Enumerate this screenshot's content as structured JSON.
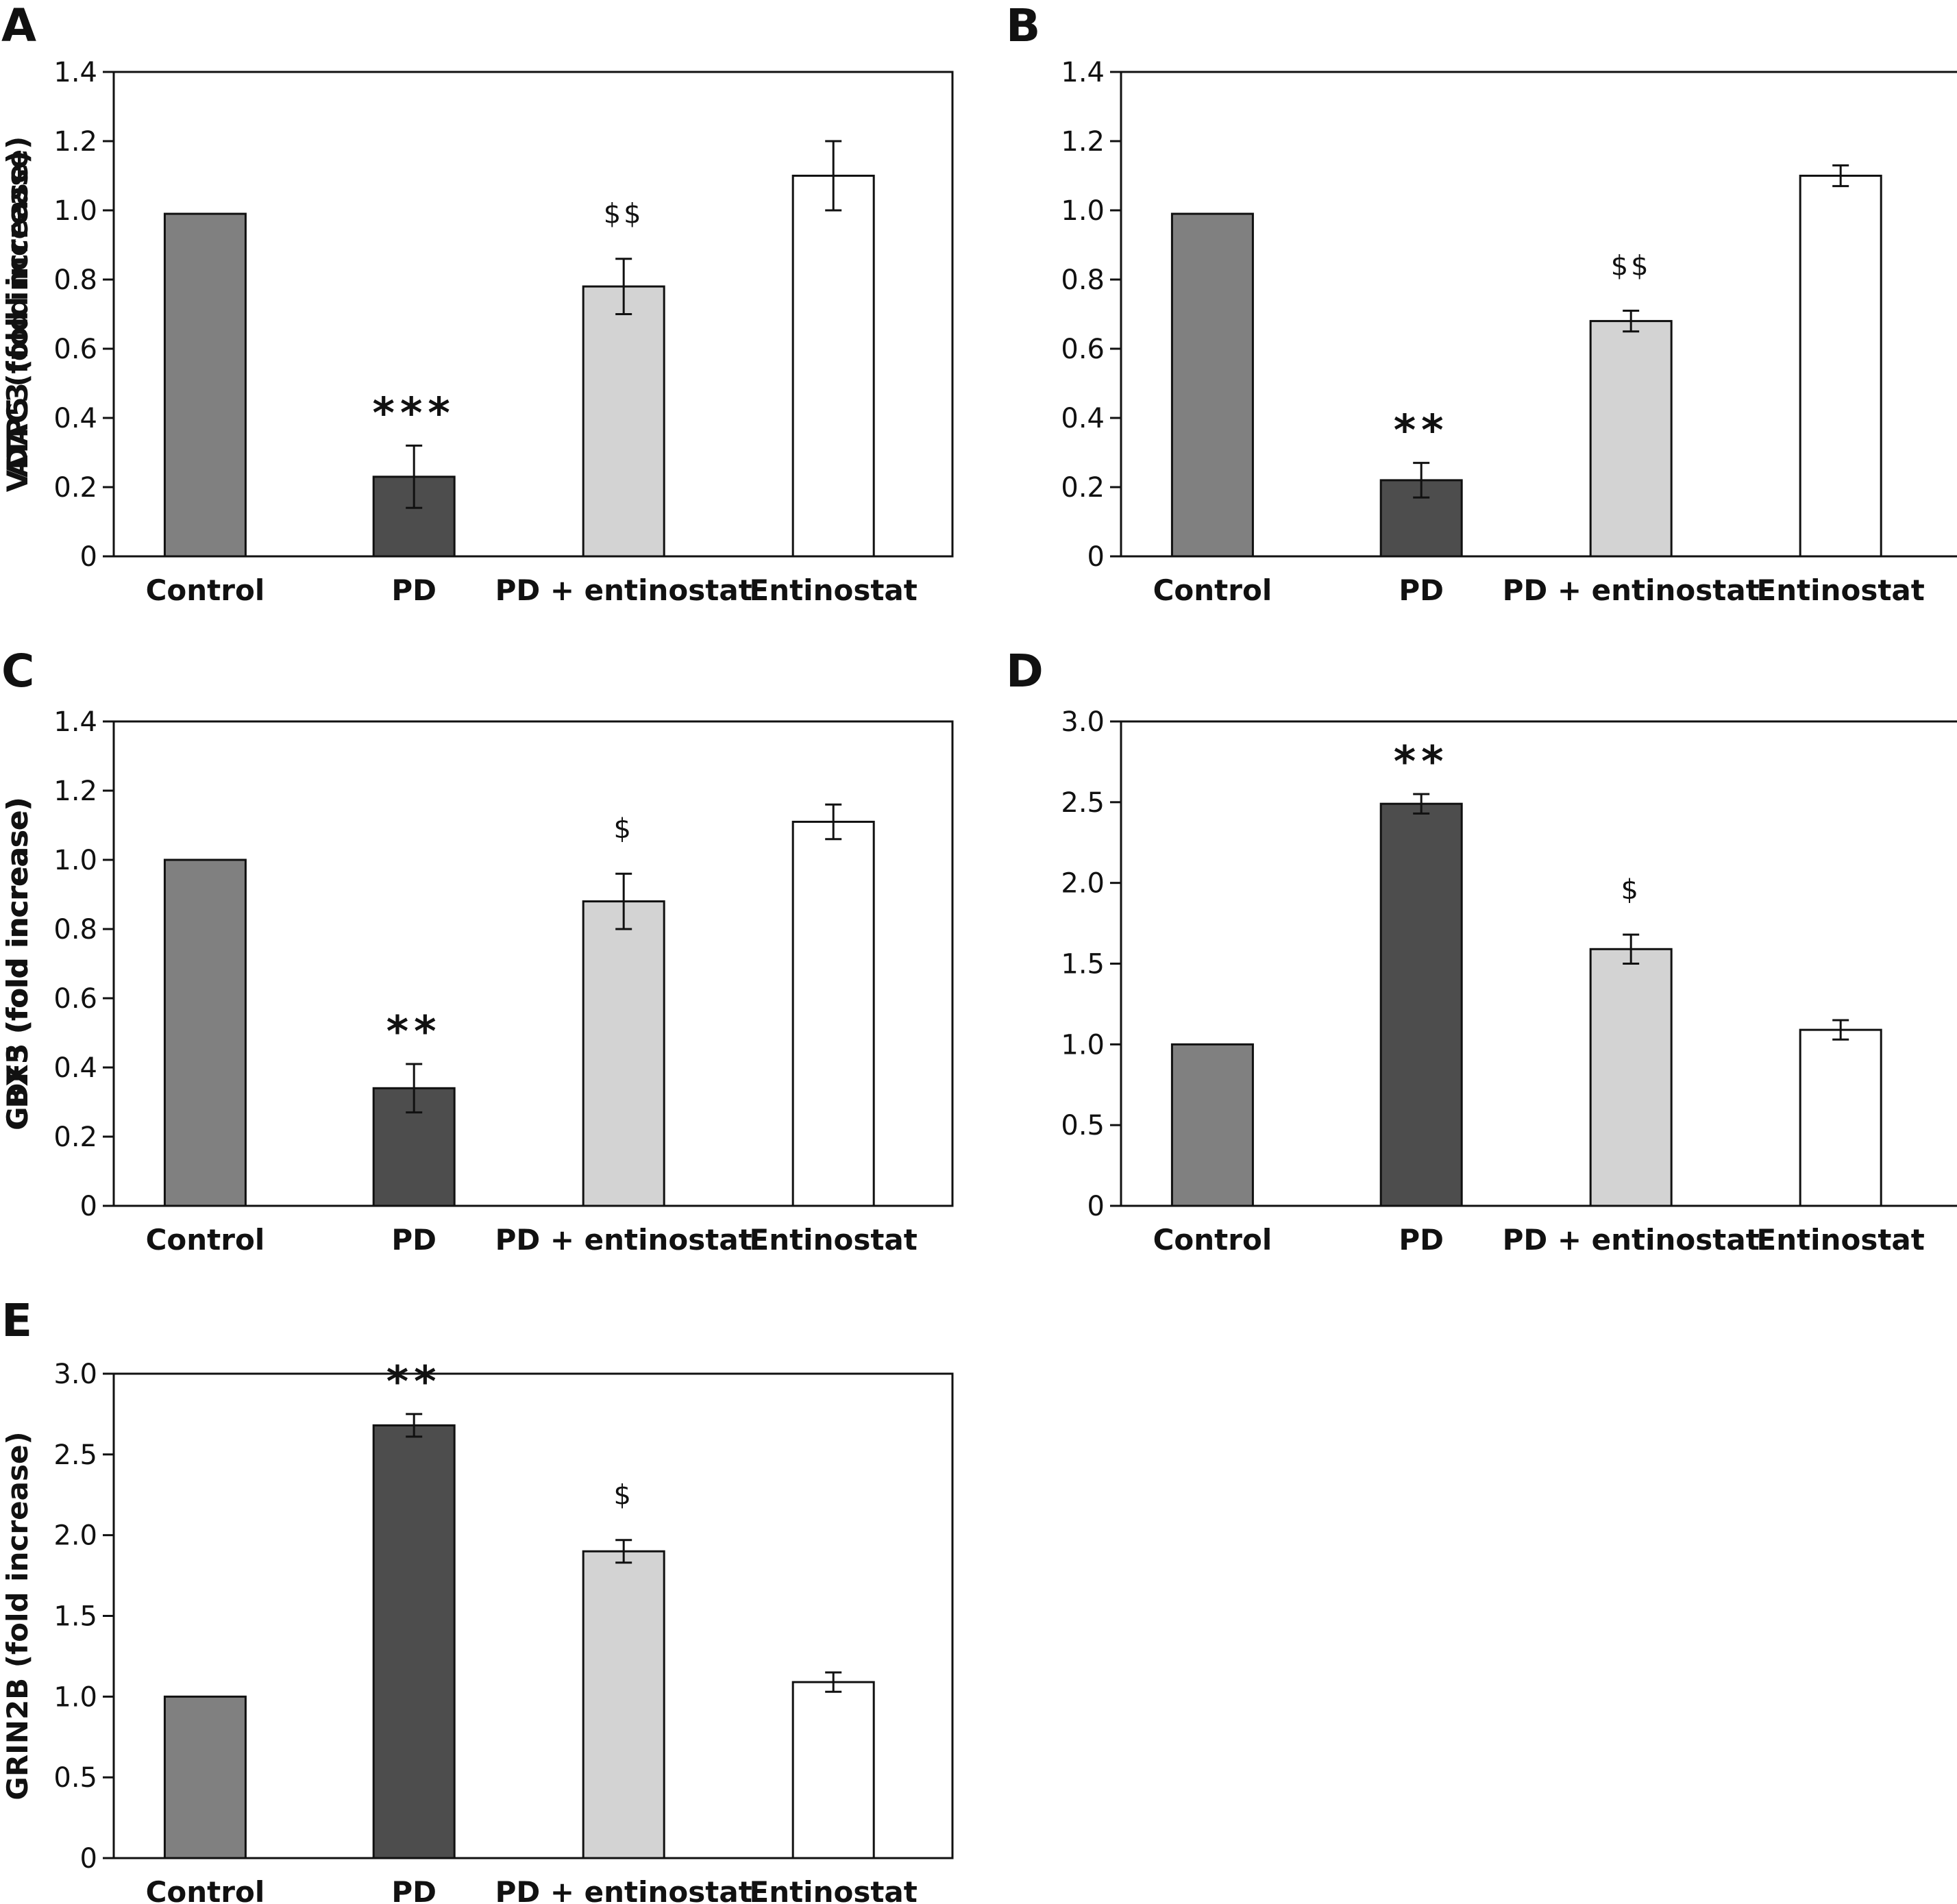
{
  "chart_data": [
    {
      "panel": "A",
      "type": "bar",
      "ylabel": "ATP5 (fold increase)",
      "ylim": [
        0,
        1.4
      ],
      "yticks": [
        "0",
        "0.2",
        "0.4",
        "0.6",
        "0.8",
        "1.0",
        "1.2",
        "1.4"
      ],
      "categories": [
        "Control",
        "PD",
        "PD + entinostat",
        "Entinostat"
      ],
      "values": [
        0.99,
        0.23,
        0.78,
        1.1
      ],
      "errors": [
        null,
        0.09,
        0.08,
        0.1
      ],
      "significance": [
        "",
        "***",
        "$$",
        ""
      ],
      "colors": [
        "#808080",
        "#4d4d4d",
        "#d3d3d3",
        "#ffffff"
      ]
    },
    {
      "panel": "B",
      "type": "bar",
      "ylabel": "VDAC3 (fold increase)",
      "ylim": [
        0,
        1.4
      ],
      "yticks": [
        "0",
        "0.2",
        "0.4",
        "0.6",
        "0.8",
        "1.0",
        "1.2",
        "1.4"
      ],
      "categories": [
        "Control",
        "PD",
        "PD + entinostat",
        "Entinostat"
      ],
      "values": [
        0.99,
        0.22,
        0.68,
        1.1
      ],
      "errors": [
        null,
        0.05,
        0.03,
        0.03
      ],
      "significance": [
        "",
        "**",
        "$$",
        ""
      ],
      "colors": [
        "#808080",
        "#4d4d4d",
        "#d3d3d3",
        "#ffffff"
      ]
    },
    {
      "panel": "C",
      "type": "bar",
      "ylabel": "CBX5 (fold increase)",
      "ylim": [
        0,
        1.4
      ],
      "yticks": [
        "0",
        "0.2",
        "0.4",
        "0.6",
        "0.8",
        "1.0",
        "1.2",
        "1.4"
      ],
      "categories": [
        "Control",
        "PD",
        "PD + entinostat",
        "Entinostat"
      ],
      "values": [
        1.0,
        0.34,
        0.88,
        1.11
      ],
      "errors": [
        null,
        0.07,
        0.08,
        0.05
      ],
      "significance": [
        "",
        "**",
        "$",
        ""
      ],
      "colors": [
        "#808080",
        "#4d4d4d",
        "#d3d3d3",
        "#ffffff"
      ]
    },
    {
      "panel": "D",
      "type": "bar",
      "ylabel": "GDF3 (fold increase)",
      "ylim": [
        0,
        3.0
      ],
      "yticks": [
        "0",
        "0.5",
        "1.0",
        "1.5",
        "2.0",
        "2.5",
        "3.0"
      ],
      "categories": [
        "Control",
        "PD",
        "PD + entinostat",
        "Entinostat"
      ],
      "values": [
        1.0,
        2.49,
        1.59,
        1.09
      ],
      "errors": [
        null,
        0.06,
        0.09,
        0.06
      ],
      "significance": [
        "",
        "**",
        "$",
        ""
      ],
      "colors": [
        "#808080",
        "#4d4d4d",
        "#d3d3d3",
        "#ffffff"
      ]
    },
    {
      "panel": "E",
      "type": "bar",
      "ylabel": "GRIN2B (fold increase)",
      "ylim": [
        0,
        3.0
      ],
      "yticks": [
        "0",
        "0.5",
        "1.0",
        "1.5",
        "2.0",
        "2.5",
        "3.0"
      ],
      "categories": [
        "Control",
        "PD",
        "PD + entinostat",
        "Entinostat"
      ],
      "values": [
        1.0,
        2.68,
        1.9,
        1.09
      ],
      "errors": [
        null,
        0.07,
        0.07,
        0.06
      ],
      "significance": [
        "",
        "**",
        "$",
        ""
      ],
      "colors": [
        "#808080",
        "#4d4d4d",
        "#d3d3d3",
        "#ffffff"
      ]
    }
  ]
}
